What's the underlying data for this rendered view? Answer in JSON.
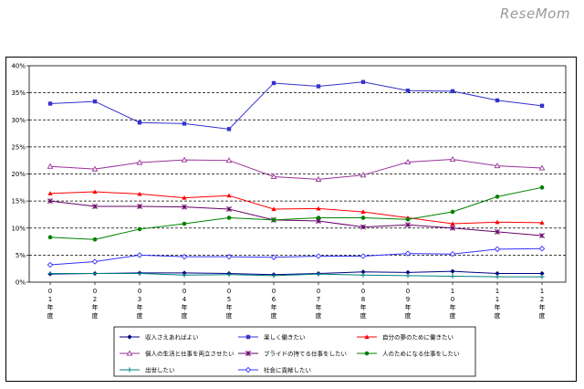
{
  "watermark": "ReseMom",
  "chart_data": {
    "type": "line",
    "title": "",
    "xlabel": "",
    "ylabel": "",
    "ylim": [
      0,
      40
    ],
    "y_ticks": [
      "0%",
      "5%",
      "10%",
      "15%",
      "20%",
      "25%",
      "30%",
      "35%",
      "40%"
    ],
    "grid": "horizontal dashed",
    "legend_position": "bottom",
    "categories": [
      "0\n1\n年\n度",
      "0\n2\n年\n度",
      "0\n3\n年\n度",
      "0\n4\n年\n度",
      "0\n5\n年\n度",
      "0\n6\n年\n度",
      "0\n7\n年\n度",
      "0\n8\n年\n度",
      "0\n9\n年\n度",
      "1\n0\n年\n度",
      "1\n1\n年\n度",
      "1\n2\n年\n度"
    ],
    "series": [
      {
        "name": "収入さえあればよい",
        "color": "#000080",
        "marker": "diamond",
        "values": [
          1.5,
          1.6,
          1.7,
          1.7,
          1.6,
          1.4,
          1.6,
          1.9,
          1.8,
          2.0,
          1.6,
          1.6
        ]
      },
      {
        "name": "楽しく働きたい",
        "color": "#3333cc",
        "marker": "square",
        "values": [
          33.0,
          33.4,
          29.5,
          29.3,
          28.3,
          36.8,
          36.2,
          37.0,
          35.4,
          35.3,
          33.6,
          32.6
        ]
      },
      {
        "name": "自分の夢のために働きたい",
        "color": "#ff0000",
        "marker": "triangle",
        "values": [
          16.4,
          16.7,
          16.3,
          15.6,
          16.0,
          13.5,
          13.6,
          13.0,
          11.9,
          10.8,
          11.1,
          11.0
        ]
      },
      {
        "name": "個人の生活と仕事を両立させたい",
        "color": "#993399",
        "marker": "triangle-open",
        "values": [
          21.4,
          20.9,
          22.1,
          22.6,
          22.5,
          19.5,
          19.0,
          19.8,
          22.2,
          22.7,
          21.5,
          21.1
        ]
      },
      {
        "name": "プライドの持てる仕事をしたい",
        "color": "#660066",
        "marker": "star",
        "values": [
          15.0,
          14.0,
          14.0,
          13.9,
          13.5,
          11.5,
          11.3,
          10.2,
          10.6,
          10.0,
          9.3,
          8.6
        ]
      },
      {
        "name": "人のためになる仕事をしたい",
        "color": "#008000",
        "marker": "circle",
        "values": [
          8.3,
          7.9,
          9.8,
          10.8,
          11.9,
          11.5,
          11.9,
          11.9,
          11.6,
          13.0,
          15.8,
          17.5
        ]
      },
      {
        "name": "出世したい",
        "color": "#008080",
        "marker": "plus",
        "values": [
          1.6,
          1.6,
          1.6,
          1.3,
          1.4,
          1.2,
          1.5,
          1.3,
          1.2,
          1.1,
          1.0,
          1.0
        ]
      },
      {
        "name": "社会に貢献したい",
        "color": "#3333ff",
        "marker": "diamond-open",
        "values": [
          3.2,
          3.8,
          5.0,
          4.7,
          4.7,
          4.6,
          4.8,
          4.8,
          5.3,
          5.2,
          6.1,
          6.2
        ]
      }
    ]
  }
}
